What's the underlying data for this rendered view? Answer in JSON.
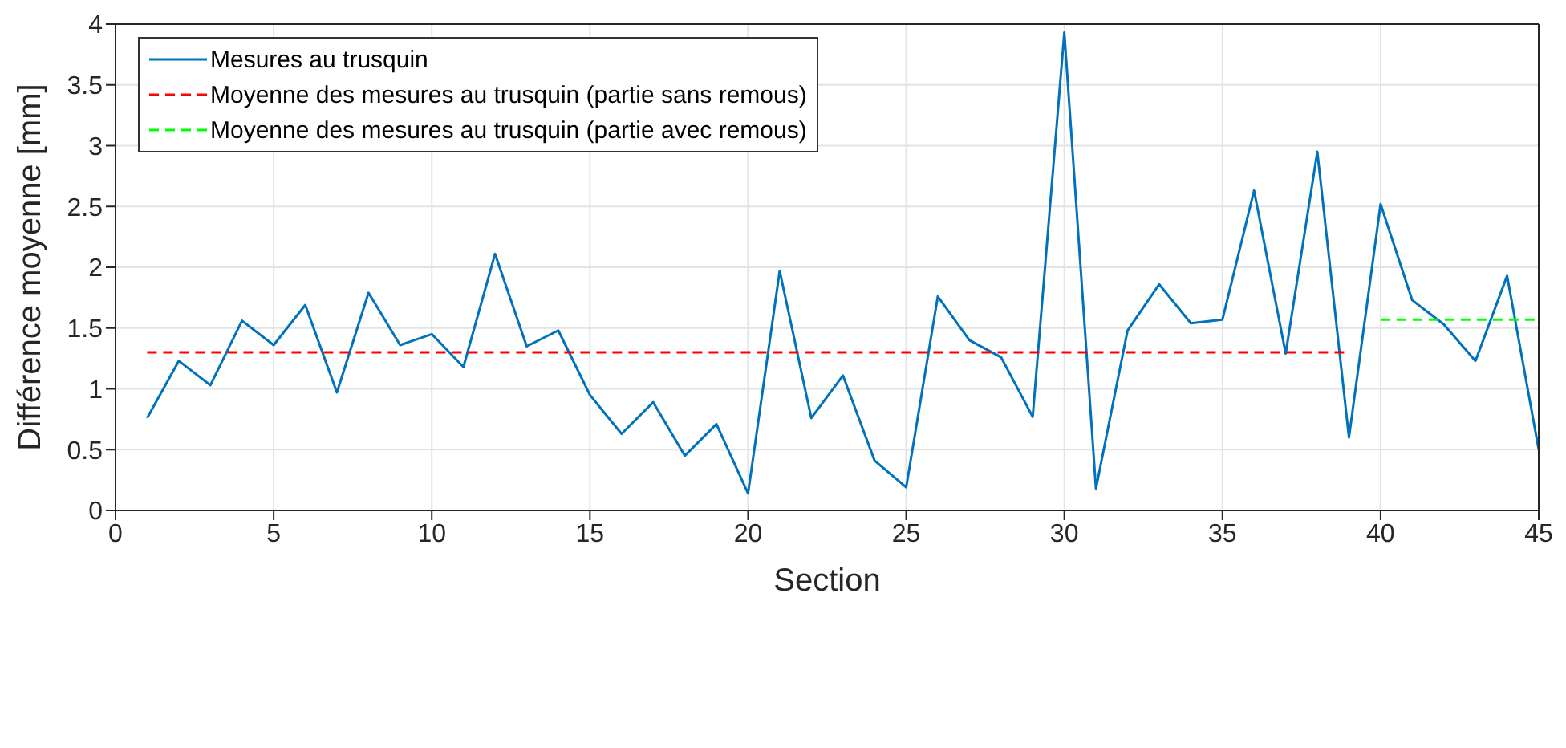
{
  "chart_data": {
    "type": "line",
    "xlabel": "Section",
    "ylabel": "Différence moyenne [mm]",
    "x": [
      1,
      2,
      3,
      4,
      5,
      6,
      7,
      8,
      9,
      10,
      11,
      12,
      13,
      14,
      15,
      16,
      17,
      18,
      19,
      20,
      21,
      22,
      23,
      24,
      25,
      26,
      27,
      28,
      29,
      30,
      31,
      32,
      33,
      34,
      35,
      36,
      37,
      38,
      39,
      40,
      41,
      42,
      43,
      44,
      45
    ],
    "series": [
      {
        "name": "Mesures au trusquin",
        "color": "#0072bd",
        "line_style": "solid",
        "values": [
          0.76,
          1.23,
          1.03,
          1.56,
          1.36,
          1.69,
          0.97,
          1.79,
          1.36,
          1.45,
          1.18,
          2.11,
          1.35,
          1.48,
          0.95,
          0.63,
          0.89,
          0.45,
          0.71,
          0.14,
          1.97,
          0.76,
          1.11,
          0.41,
          0.19,
          1.76,
          1.4,
          1.26,
          0.77,
          3.93,
          0.18,
          1.48,
          1.86,
          1.54,
          1.57,
          2.63,
          1.29,
          2.95,
          0.6,
          2.52,
          1.73,
          1.53,
          1.23,
          1.93,
          0.5
        ]
      },
      {
        "name": "Moyenne des mesures au trusquin (partie sans remous)",
        "color": "#ff0000",
        "line_style": "dashed",
        "x": [
          1,
          39
        ],
        "values": [
          1.3,
          1.3
        ]
      },
      {
        "name": "Moyenne des mesures au trusquin (partie avec remous)",
        "color": "#00ff00",
        "line_style": "dashed",
        "x": [
          40,
          45
        ],
        "values": [
          1.57,
          1.57
        ]
      }
    ],
    "xlim": [
      0,
      45
    ],
    "xticks": [
      0,
      5,
      10,
      15,
      20,
      25,
      30,
      35,
      40,
      45
    ],
    "ylim": [
      0,
      4
    ],
    "yticks": [
      0,
      0.5,
      1,
      1.5,
      2,
      2.5,
      3,
      3.5,
      4
    ],
    "grid": true,
    "legend": "top left",
    "marker": "none"
  }
}
